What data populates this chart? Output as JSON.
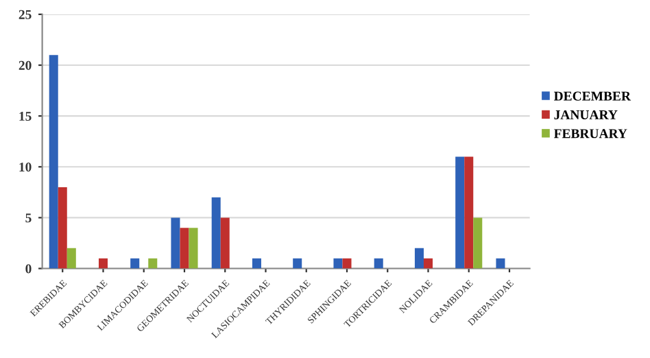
{
  "chart_data": {
    "type": "bar",
    "categories": [
      "EREBIDAE",
      "BOMBYCIDAE",
      "LIMACODIDAE",
      "GEOMETRIDAE",
      "NOCTUIDAE",
      "LASIOCAMPIDAE",
      "THYRIDIDAE",
      "SPHINGIDAE",
      "TORTRICIDAE",
      "NOLIDAE",
      "CRAMBIDAE",
      "DREPANIDAE"
    ],
    "series": [
      {
        "name": "DECEMBER",
        "color": "#2e62b8",
        "values": [
          21,
          null,
          1,
          5,
          7,
          1,
          1,
          1,
          1,
          2,
          11,
          1
        ]
      },
      {
        "name": "JANUARY",
        "color": "#c0302e",
        "values": [
          8,
          1,
          null,
          4,
          5,
          null,
          null,
          1,
          null,
          1,
          11,
          null
        ]
      },
      {
        "name": "FEBRUARY",
        "color": "#8fb43a",
        "values": [
          2,
          null,
          1,
          4,
          null,
          null,
          null,
          null,
          null,
          null,
          5,
          null
        ]
      }
    ],
    "ylim": [
      0,
      25
    ],
    "yticks": [
      0,
      5,
      10,
      15,
      20,
      25
    ],
    "grid": "y",
    "legend": "right"
  }
}
